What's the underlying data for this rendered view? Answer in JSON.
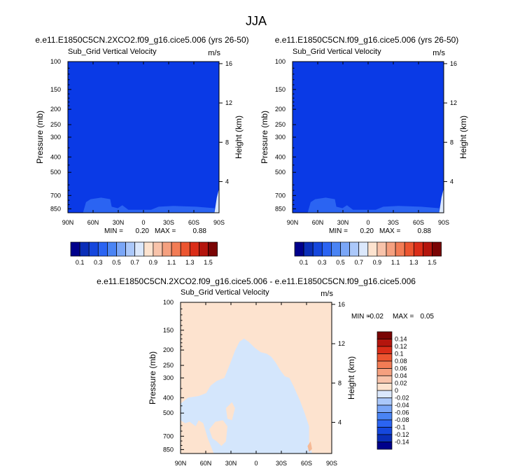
{
  "figure": {
    "title": "JJA"
  },
  "colors": {
    "frame": "#000000",
    "top_fill": "#0a3ae6",
    "top_low_patch": "#2b64f2",
    "top_edge_patch": "#dbe8fc",
    "diff_background": "#fde3cf",
    "diff_negative_patch": "#d4e6fc",
    "diff_positive_speck": "#f6b995"
  },
  "chart_data": [
    {
      "type": "heatmap",
      "name": "panel-left",
      "title": "e.e11.E1850C5CN.2XCO2.f09_g16.cice5.006 (yrs 26-50)",
      "left_label": "Sub_Grid Vertical Velocity",
      "right_label": "m/s",
      "ylabel": "Pressure (mb)",
      "y2label": "Height (km)",
      "x_ticks": [
        "90N",
        "60N",
        "30N",
        "0",
        "30S",
        "60S",
        "90S"
      ],
      "y_ticks": [
        "100",
        "150",
        "200",
        "250",
        "300",
        "400",
        "500",
        "700",
        "850"
      ],
      "y2_ticks": [
        "16",
        "12",
        "8",
        "4"
      ],
      "stats": {
        "min_label": "MIN =",
        "min": "0.20",
        "max_label": "MAX =",
        "max": "0.88"
      },
      "field_value_range": [
        0.2,
        0.88
      ]
    },
    {
      "type": "heatmap",
      "name": "panel-right",
      "title": "e.e11.E1850C5CN.f09_g16.cice5.006 (yrs 26-50)",
      "left_label": "Sub_Grid Vertical Velocity",
      "right_label": "m/s",
      "ylabel": "Pressure (mb)",
      "y2label": "Height (km)",
      "x_ticks": [
        "90N",
        "60N",
        "30N",
        "0",
        "30S",
        "60S",
        "90S"
      ],
      "y_ticks": [
        "100",
        "150",
        "200",
        "250",
        "300",
        "400",
        "500",
        "700",
        "850"
      ],
      "y2_ticks": [
        "16",
        "12",
        "8",
        "4"
      ],
      "stats": {
        "min_label": "MIN =",
        "min": "0.20",
        "max_label": "MAX =",
        "max": "0.88"
      },
      "field_value_range": [
        0.2,
        0.88
      ]
    },
    {
      "type": "heatmap",
      "name": "panel-diff",
      "title": "e.e11.E1850C5CN.2XCO2.f09_g16.cice5.006 - e.e11.E1850C5CN.f09_g16.cice5.006",
      "left_label": "Sub_Grid Vertical Velocity",
      "right_label": "m/s",
      "ylabel": "Pressure (mb)",
      "y2label": "Height (km)",
      "x_ticks": [
        "90N",
        "60N",
        "30N",
        "0",
        "30S",
        "60S",
        "90S"
      ],
      "y_ticks": [
        "100",
        "150",
        "200",
        "250",
        "300",
        "400",
        "500",
        "700",
        "850"
      ],
      "y2_ticks": [
        "16",
        "12",
        "8",
        "4"
      ],
      "stats": {
        "min_label": "MIN =",
        "min": "-0.02",
        "max_label": "MAX =",
        "max": "0.05"
      },
      "field_value_range": [
        -0.02,
        0.05
      ]
    }
  ],
  "colorbar_main": {
    "orientation": "horizontal",
    "colors": [
      "#00008b",
      "#0a2eb8",
      "#1547dd",
      "#2b64f2",
      "#4a84f4",
      "#7aa6f7",
      "#abc8fa",
      "#dbe8fc",
      "#fde3cf",
      "#f8c3aa",
      "#f5a07f",
      "#f27c55",
      "#ec5530",
      "#da2d18",
      "#b4150d",
      "#7a0404"
    ],
    "labels": [
      "0.1",
      "0.3",
      "0.5",
      "0.7",
      "0.9",
      "1.1",
      "1.3",
      "1.5"
    ]
  },
  "colorbar_diff": {
    "orientation": "vertical",
    "colors": [
      "#7a0404",
      "#b4150d",
      "#da2d18",
      "#ec5530",
      "#f27c55",
      "#f5a07f",
      "#f8c3aa",
      "#fde3cf",
      "#dbe8fc",
      "#abc8fa",
      "#7aa6f7",
      "#4a84f4",
      "#2b64f2",
      "#1547dd",
      "#0a2eb8",
      "#00008b"
    ],
    "labels": [
      "0.14",
      "0.12",
      "0.1",
      "0.08",
      "0.06",
      "0.04",
      "0.02",
      "0",
      "-0.02",
      "-0.04",
      "-0.06",
      "-0.08",
      "-0.1",
      "-0.12",
      "-0.14"
    ]
  }
}
